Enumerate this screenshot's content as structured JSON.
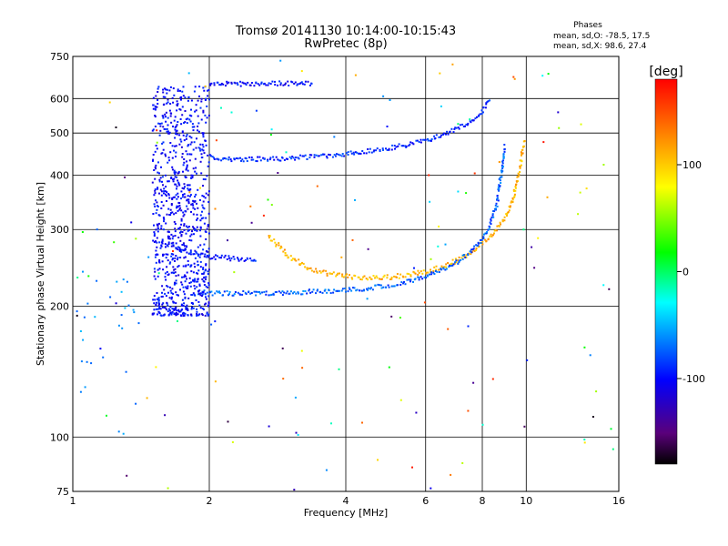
{
  "chart_data": {
    "type": "scatter",
    "title": "Tromsø 20141130 10:14:00-10:15:43",
    "subtitle": "RwPretec (8p)",
    "xlabel": "Frequency [MHz]",
    "ylabel": "Stationary phase Virtual Height [km]",
    "x_scale": "log",
    "y_scale": "log",
    "xlim": [
      1,
      16
    ],
    "ylim": [
      75,
      750
    ],
    "x_ticks": [
      1,
      2,
      4,
      6,
      8,
      10,
      16
    ],
    "y_ticks": [
      75,
      100,
      200,
      300,
      400,
      500,
      600,
      750
    ],
    "x_tick_labels": [
      "1",
      "2",
      "4",
      "6",
      "8",
      "10",
      "16"
    ],
    "y_tick_labels": [
      "75",
      "100",
      "200",
      "300",
      "400",
      "500",
      "600",
      "750"
    ],
    "x_gridlines": [
      2,
      4,
      6,
      8,
      10
    ],
    "y_gridlines": [
      100,
      200,
      300,
      400,
      500,
      600
    ],
    "grid": true,
    "phase_box": {
      "title": "Phases",
      "line_o": "mean, sd,O: -78.5, 17.5",
      "line_x": "mean, sd,X:  98.6, 27.4"
    },
    "colorbar": {
      "label": "[deg]",
      "range": [
        -180,
        180
      ],
      "ticks": [
        100,
        0,
        -100
      ],
      "tick_labels": [
        "100",
        "0",
        "-100"
      ],
      "colors": [
        "#000000",
        "#5a007a",
        "#0000ff",
        "#00ffff",
        "#00ff00",
        "#ffff00",
        "#ff8000",
        "#ff0000"
      ]
    },
    "series": [
      {
        "trace": "upper",
        "phase": -90,
        "x": [
          2.0,
          2.2,
          2.4,
          2.6,
          2.8,
          3.0,
          3.3,
          3.6,
          4.0,
          4.5,
          5.0,
          5.5,
          6.0,
          6.5,
          7.0,
          7.5,
          8.0,
          8.3
        ],
        "y": [
          440,
          435,
          435,
          435,
          436,
          438,
          440,
          443,
          448,
          455,
          462,
          470,
          480,
          495,
          510,
          530,
          560,
          600
        ]
      },
      {
        "trace": "lower-X",
        "phase": 110,
        "x": [
          2.7,
          3.0,
          3.3,
          3.6,
          4.0,
          4.5,
          5.0,
          5.5,
          6.0,
          6.5,
          7.0,
          7.5,
          8.0,
          8.5,
          9.0,
          9.4,
          9.7,
          9.9
        ],
        "y": [
          290,
          260,
          245,
          238,
          234,
          232,
          233,
          236,
          240,
          246,
          254,
          264,
          278,
          295,
          320,
          360,
          420,
          480
        ]
      },
      {
        "trace": "lower-O",
        "phase": -75,
        "x": [
          1.9,
          2.1,
          2.4,
          2.7,
          3.0,
          3.5,
          4.0,
          4.5,
          5.0,
          5.5,
          6.0,
          6.5,
          7.0,
          7.5,
          8.0,
          8.3,
          8.6,
          8.8,
          9.0
        ],
        "y": [
          215,
          214,
          214,
          214,
          215,
          216,
          218,
          220,
          223,
          228,
          234,
          242,
          252,
          265,
          285,
          305,
          340,
          400,
          470
        ]
      },
      {
        "trace": "mid-O",
        "phase": -95,
        "x": [
          1.65,
          1.8,
          2.0,
          2.2,
          2.4,
          2.55
        ],
        "y": [
          275,
          265,
          260,
          258,
          256,
          255
        ]
      },
      {
        "trace": "spread-F",
        "phase": -100,
        "x_range": [
          1.5,
          2.0
        ],
        "y_range": [
          190,
          640
        ]
      },
      {
        "trace": "top",
        "phase": -100,
        "x": [
          2.0,
          2.2,
          2.4,
          2.6,
          2.8,
          3.0,
          3.2,
          3.4
        ],
        "y": [
          650,
          650,
          648,
          648,
          650,
          650,
          648,
          650
        ]
      }
    ]
  }
}
